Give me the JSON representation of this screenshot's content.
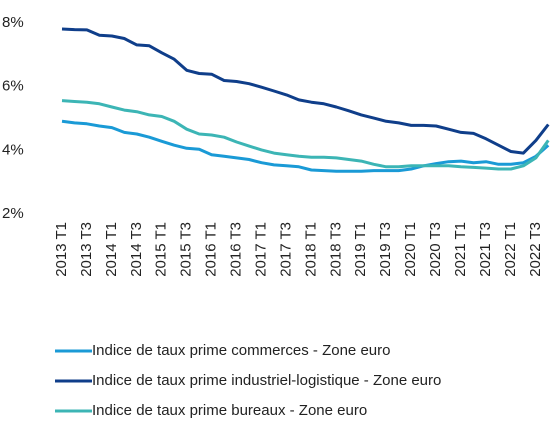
{
  "chart_data": {
    "type": "line",
    "categories": [
      "2013 T1",
      null,
      "2013 T3",
      null,
      "2014 T1",
      null,
      "2014 T3",
      null,
      "2015 T1",
      null,
      "2015 T3",
      null,
      "2016 T1",
      null,
      "2016 T3",
      null,
      "2017 T1",
      null,
      "2017 T3",
      null,
      "2018 T1",
      null,
      "2018 T3",
      null,
      "2019 T1",
      null,
      "2019 T3",
      null,
      "2020 T1",
      null,
      "2020 T3",
      null,
      "2021 T1",
      null,
      "2021 T3",
      null,
      "2022 T1",
      null,
      "2022 T3",
      null
    ],
    "series": [
      {
        "name": "Indice de taux prime commerces - Zone euro",
        "color": "#1a9ad6",
        "values": [
          4.85,
          4.8,
          4.77,
          4.7,
          4.65,
          4.5,
          4.45,
          4.35,
          4.22,
          4.1,
          4.0,
          3.97,
          3.8,
          3.75,
          3.7,
          3.65,
          3.55,
          3.48,
          3.45,
          3.42,
          3.32,
          3.3,
          3.28,
          3.28,
          3.28,
          3.3,
          3.3,
          3.3,
          3.35,
          3.45,
          3.52,
          3.58,
          3.6,
          3.55,
          3.58,
          3.5,
          3.5,
          3.55,
          3.75,
          4.1
        ]
      },
      {
        "name": "Indice de taux prime industriel-logistique - Zone euro",
        "color": "#0f3e8a",
        "values": [
          7.75,
          7.73,
          7.72,
          7.55,
          7.53,
          7.45,
          7.25,
          7.22,
          7.0,
          6.8,
          6.45,
          6.35,
          6.33,
          6.13,
          6.1,
          6.03,
          5.92,
          5.8,
          5.68,
          5.52,
          5.45,
          5.4,
          5.3,
          5.18,
          5.05,
          4.95,
          4.85,
          4.8,
          4.72,
          4.72,
          4.7,
          4.6,
          4.5,
          4.47,
          4.3,
          4.1,
          3.9,
          3.85,
          4.25,
          4.75
        ]
      },
      {
        "name": "Indice de taux prime bureaux - Zone euro",
        "color": "#3cb5b5",
        "values": [
          5.5,
          5.47,
          5.45,
          5.4,
          5.3,
          5.2,
          5.15,
          5.05,
          5.0,
          4.85,
          4.6,
          4.45,
          4.42,
          4.35,
          4.2,
          4.07,
          3.95,
          3.85,
          3.8,
          3.75,
          3.72,
          3.72,
          3.7,
          3.65,
          3.6,
          3.5,
          3.42,
          3.42,
          3.45,
          3.45,
          3.45,
          3.45,
          3.42,
          3.4,
          3.38,
          3.35,
          3.35,
          3.45,
          3.7,
          4.25
        ]
      }
    ],
    "ylim": [
      2,
      8
    ],
    "yticks": [
      {
        "value": 2,
        "label": "2%"
      },
      {
        "value": 4,
        "label": "4%"
      },
      {
        "value": 6,
        "label": "6%"
      },
      {
        "value": 8,
        "label": "8%"
      }
    ],
    "grid": false
  }
}
